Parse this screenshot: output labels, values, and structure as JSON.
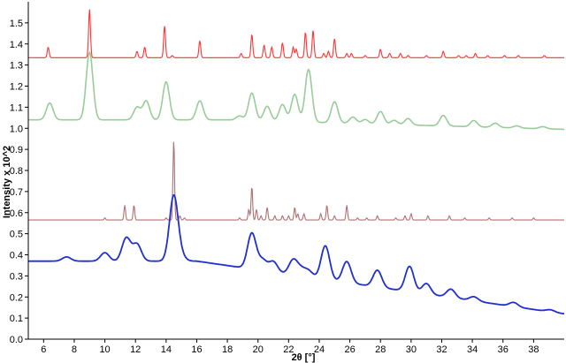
{
  "chart_data": {
    "type": "line",
    "xlabel": "2θ [°]",
    "ylabel": "Intensity x 10^2",
    "xlim": [
      5,
      40
    ],
    "ylim": [
      0,
      1.6
    ],
    "grid": false,
    "legend": "none",
    "x_ticks": [
      6,
      8,
      10,
      12,
      14,
      16,
      18,
      20,
      22,
      24,
      26,
      28,
      30,
      32,
      34,
      36,
      38
    ],
    "y_ticks": [
      0.0,
      0.1,
      0.2,
      0.3,
      0.4,
      0.5,
      0.6,
      0.7,
      0.8,
      0.9,
      1.0,
      1.1,
      1.2,
      1.3,
      1.4,
      1.5
    ],
    "series": [
      {
        "color": "#ff3333",
        "baseline": 1.335,
        "peaks": [
          [
            6.3,
            0.05
          ],
          [
            9.0,
            0.23
          ],
          [
            12.1,
            0.03
          ],
          [
            12.6,
            0.05
          ],
          [
            13.9,
            0.15
          ],
          [
            14.4,
            0.01
          ],
          [
            16.2,
            0.08
          ],
          [
            18.9,
            0.02
          ],
          [
            19.6,
            0.11
          ],
          [
            20.4,
            0.06
          ],
          [
            20.9,
            0.05
          ],
          [
            21.6,
            0.07
          ],
          [
            22.3,
            0.05
          ],
          [
            22.5,
            0.04
          ],
          [
            23.1,
            0.12
          ],
          [
            23.6,
            0.13
          ],
          [
            24.3,
            0.02
          ],
          [
            24.6,
            0.03
          ],
          [
            25.0,
            0.09
          ],
          [
            25.8,
            0.02
          ],
          [
            26.1,
            0.02
          ],
          [
            27.0,
            0.01
          ],
          [
            28.0,
            0.04
          ],
          [
            28.6,
            0.02
          ],
          [
            29.3,
            0.02
          ],
          [
            29.8,
            0.01
          ],
          [
            31.0,
            0.01
          ],
          [
            32.1,
            0.03
          ],
          [
            33.1,
            0.01
          ],
          [
            33.6,
            0.01
          ],
          [
            34.2,
            0.02
          ],
          [
            35.0,
            0.01
          ],
          [
            36.1,
            0.01
          ],
          [
            37.0,
            0.01
          ],
          [
            38.7,
            0.01
          ]
        ]
      },
      {
        "color": "#99cc99",
        "baseline": 1.04,
        "peaks": [
          [
            6.4,
            0.08
          ],
          [
            9.0,
            0.32
          ],
          [
            12.1,
            0.06
          ],
          [
            12.7,
            0.09
          ],
          [
            14.0,
            0.18
          ],
          [
            16.2,
            0.09
          ],
          [
            18.8,
            0.02
          ],
          [
            19.6,
            0.13
          ],
          [
            20.6,
            0.07
          ],
          [
            21.6,
            0.08
          ],
          [
            22.4,
            0.13
          ],
          [
            23.3,
            0.25
          ],
          [
            25.0,
            0.1
          ],
          [
            26.2,
            0.03
          ],
          [
            27.0,
            0.02
          ],
          [
            28.0,
            0.06
          ],
          [
            28.9,
            0.02
          ],
          [
            29.8,
            0.03
          ],
          [
            32.1,
            0.05
          ],
          [
            34.1,
            0.03
          ],
          [
            35.5,
            0.02
          ],
          [
            36.9,
            0.01
          ],
          [
            38.6,
            0.01
          ]
        ]
      },
      {
        "color": "#b07070",
        "baseline": 0.565,
        "peaks": [
          [
            10.0,
            0.01
          ],
          [
            11.3,
            0.07
          ],
          [
            11.9,
            0.07
          ],
          [
            14.0,
            0.01
          ],
          [
            14.5,
            0.38
          ],
          [
            14.9,
            0.02
          ],
          [
            15.2,
            0.01
          ],
          [
            18.8,
            0.01
          ],
          [
            19.4,
            0.05
          ],
          [
            19.6,
            0.16
          ],
          [
            19.9,
            0.05
          ],
          [
            20.2,
            0.02
          ],
          [
            20.6,
            0.06
          ],
          [
            21.1,
            0.02
          ],
          [
            21.6,
            0.02
          ],
          [
            22.0,
            0.02
          ],
          [
            22.4,
            0.06
          ],
          [
            22.6,
            0.03
          ],
          [
            23.0,
            0.03
          ],
          [
            24.1,
            0.03
          ],
          [
            24.5,
            0.07
          ],
          [
            25.0,
            0.02
          ],
          [
            25.8,
            0.07
          ],
          [
            26.5,
            0.01
          ],
          [
            27.1,
            0.01
          ],
          [
            27.8,
            0.02
          ],
          [
            29.0,
            0.01
          ],
          [
            29.6,
            0.02
          ],
          [
            30.0,
            0.03
          ],
          [
            31.1,
            0.02
          ],
          [
            32.5,
            0.02
          ],
          [
            33.5,
            0.01
          ],
          [
            35.1,
            0.01
          ],
          [
            36.6,
            0.01
          ],
          [
            38.0,
            0.01
          ]
        ]
      },
      {
        "color": "#1f2fd0",
        "baseline": 0.35,
        "peaks": [
          [
            7.5,
            0.02
          ],
          [
            10.0,
            0.04
          ],
          [
            11.4,
            0.11
          ],
          [
            12.1,
            0.08
          ],
          [
            14.5,
            0.31
          ],
          [
            15.0,
            0.02
          ],
          [
            19.6,
            0.17
          ],
          [
            20.3,
            0.05
          ],
          [
            21.0,
            0.05
          ],
          [
            22.3,
            0.07
          ],
          [
            22.8,
            0.03
          ],
          [
            23.3,
            0.03
          ],
          [
            24.4,
            0.16
          ],
          [
            25.8,
            0.1
          ],
          [
            27.8,
            0.08
          ],
          [
            29.9,
            0.12
          ],
          [
            31.0,
            0.05
          ],
          [
            32.6,
            0.04
          ],
          [
            34.1,
            0.02
          ],
          [
            36.7,
            0.02
          ],
          [
            39.1,
            0.01
          ]
        ]
      }
    ]
  }
}
